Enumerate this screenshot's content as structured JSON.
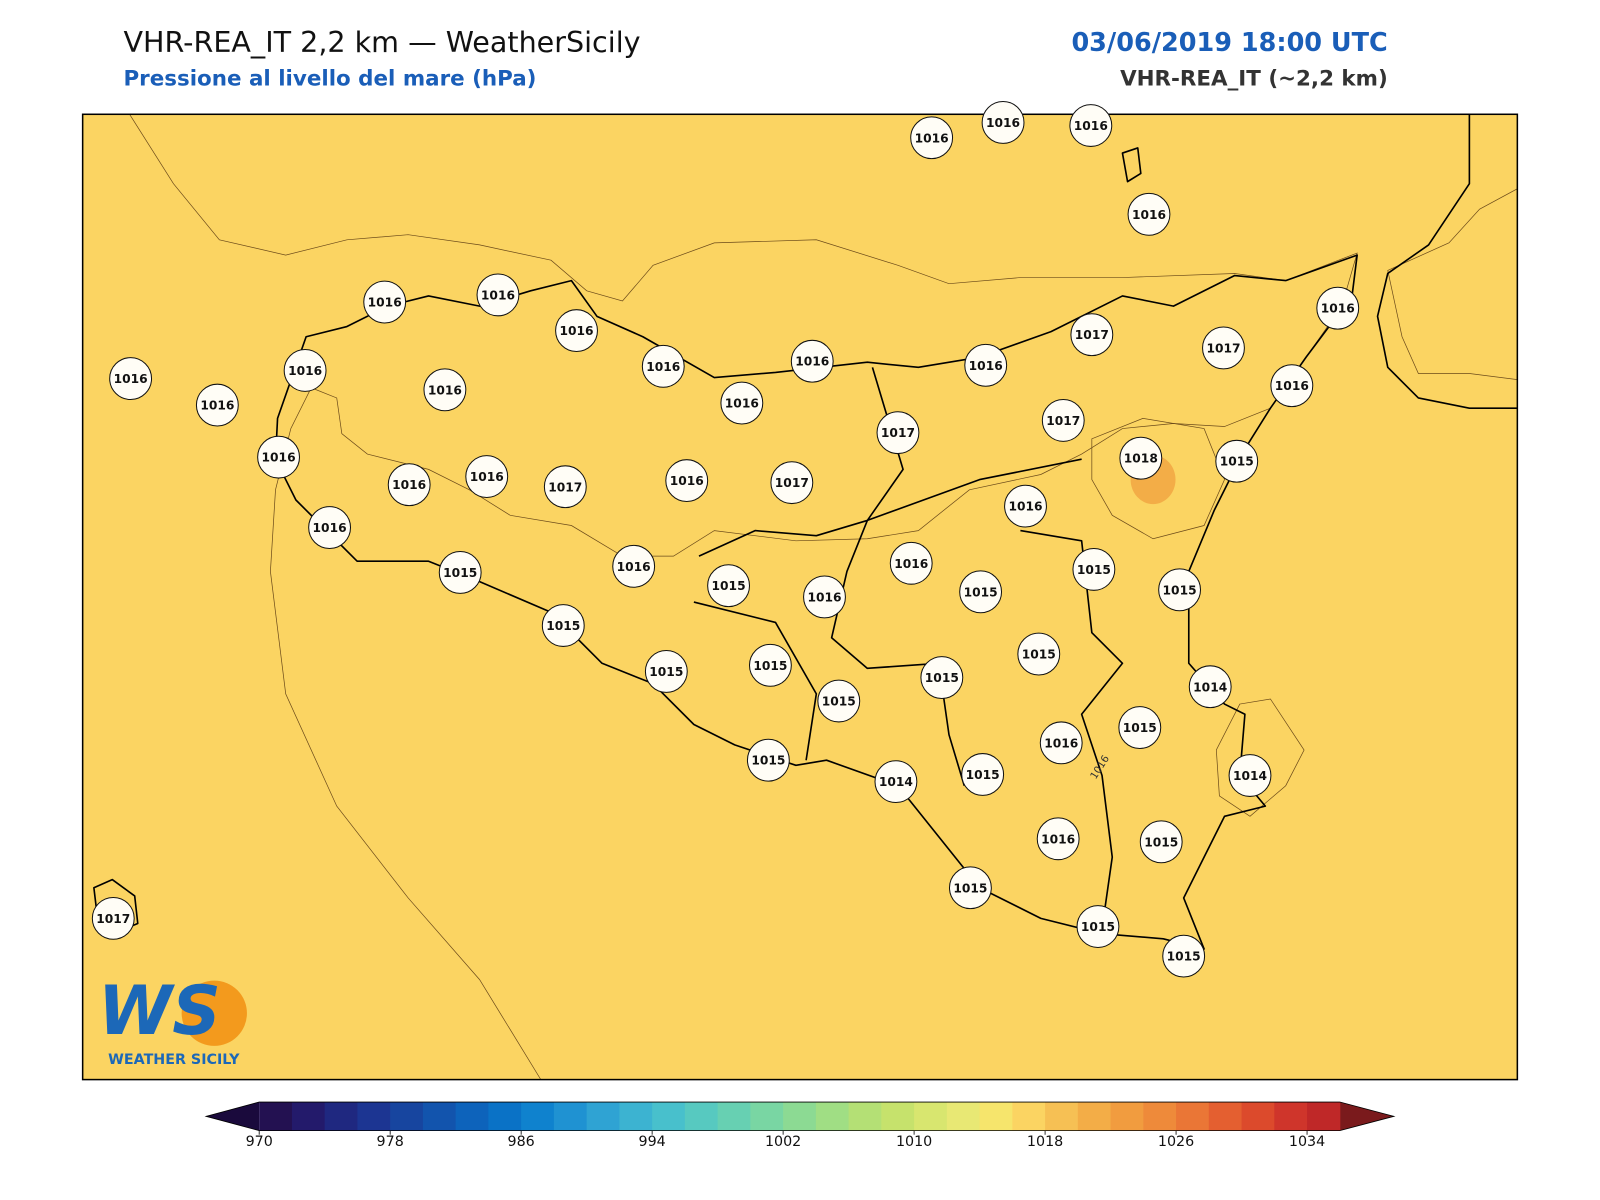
{
  "header": {
    "title": "VHR-REA_IT 2,2 km — WeatherSicily",
    "subtitle": "Pressione al livello del mare (hPa)",
    "datetime": "03/06/2019 18:00 UTC",
    "model": "VHR-REA_IT (~2,2 km)"
  },
  "stations": [
    1016,
    1016,
    1016,
    1016,
    1016,
    1016,
    1016,
    1016,
    1016,
    1016,
    1016,
    1016,
    1016,
    1016,
    1016,
    1017,
    1017,
    1016,
    1016,
    1016,
    1016,
    1016,
    1017,
    1016,
    1017,
    1017,
    1017,
    1018,
    1015,
    1016,
    1016,
    1015,
    1016,
    1015,
    1016,
    1016,
    1015,
    1015,
    1015,
    1015,
    1015,
    1015,
    1015,
    1015,
    1015,
    1014,
    1015,
    1016,
    1015,
    1014,
    1015,
    1014,
    1016,
    1015,
    1015,
    1015,
    1015,
    1017
  ],
  "contour_labels": [
    1016
  ],
  "colorbar": {
    "range": [
      970,
      1036
    ],
    "ticks": [
      970,
      978,
      986,
      994,
      1002,
      1010,
      1018,
      1026,
      1034
    ],
    "under_color": "#1a0a3c",
    "over_color": "#7a1a1c",
    "colors": [
      "#231151",
      "#231a6b",
      "#1f2880",
      "#1c3592",
      "#17459f",
      "#1254ad",
      "#0d63bb",
      "#0a72c6",
      "#0f82ce",
      "#1f92d2",
      "#2fa3d3",
      "#3cb3d1",
      "#48c0cc",
      "#57c9c0",
      "#67d0b2",
      "#79d6a3",
      "#8cda93",
      "#a0de84",
      "#b4e075",
      "#c6e26c",
      "#d8e66f",
      "#e8e874",
      "#f6e56c",
      "#fbd462",
      "#f6c054",
      "#f3ad47",
      "#f19c3f",
      "#ee8a3a",
      "#ea7636",
      "#e45f30",
      "#dc4a2c",
      "#cf352b",
      "#bf2828"
    ]
  },
  "logo": {
    "mark": "WS",
    "text": "WEATHER SICILY"
  }
}
